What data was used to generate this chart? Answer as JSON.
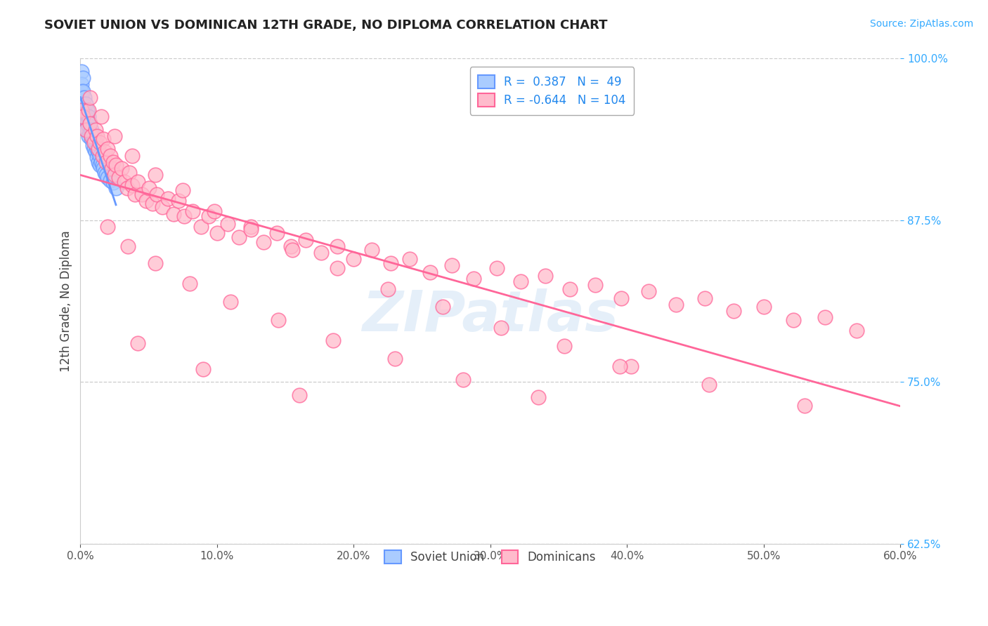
{
  "title": "SOVIET UNION VS DOMINICAN 12TH GRADE, NO DIPLOMA CORRELATION CHART",
  "source_text": "Source: ZipAtlas.com",
  "ylabel": "12th Grade, No Diploma",
  "xmin": 0.0,
  "xmax": 0.6,
  "ymin": 0.625,
  "ymax": 1.0,
  "xticks": [
    0.0,
    0.1,
    0.2,
    0.3,
    0.4,
    0.5,
    0.6
  ],
  "yticks": [
    0.625,
    0.75,
    0.875,
    1.0
  ],
  "legend_label1": "Soviet Union",
  "legend_label2": "Dominicans",
  "r1": 0.387,
  "n1": 49,
  "r2": -0.644,
  "n2": 104,
  "watermark": "ZIPatlas",
  "blue_color": "#6699FF",
  "blue_fill": "#AACCFF",
  "pink_color": "#FF6699",
  "pink_fill": "#FFBBCC",
  "soviet_x": [
    0.001,
    0.001,
    0.001,
    0.001,
    0.001,
    0.002,
    0.002,
    0.002,
    0.002,
    0.002,
    0.003,
    0.003,
    0.003,
    0.003,
    0.004,
    0.004,
    0.004,
    0.004,
    0.005,
    0.005,
    0.005,
    0.006,
    0.006,
    0.006,
    0.007,
    0.007,
    0.008,
    0.008,
    0.009,
    0.009,
    0.01,
    0.01,
    0.011,
    0.011,
    0.012,
    0.012,
    0.013,
    0.013,
    0.014,
    0.014,
    0.015,
    0.016,
    0.017,
    0.018,
    0.019,
    0.02,
    0.022,
    0.024,
    0.026
  ],
  "soviet_y": [
    0.99,
    0.98,
    0.975,
    0.97,
    0.965,
    0.985,
    0.975,
    0.965,
    0.96,
    0.955,
    0.97,
    0.96,
    0.955,
    0.95,
    0.965,
    0.955,
    0.95,
    0.945,
    0.96,
    0.95,
    0.945,
    0.955,
    0.948,
    0.94,
    0.95,
    0.943,
    0.945,
    0.938,
    0.94,
    0.933,
    0.94,
    0.93,
    0.935,
    0.928,
    0.93,
    0.924,
    0.928,
    0.92,
    0.925,
    0.918,
    0.92,
    0.918,
    0.915,
    0.912,
    0.91,
    0.908,
    0.906,
    0.904,
    0.9
  ],
  "dominican_x": [
    0.001,
    0.002,
    0.004,
    0.006,
    0.007,
    0.008,
    0.01,
    0.011,
    0.012,
    0.013,
    0.014,
    0.016,
    0.017,
    0.018,
    0.019,
    0.02,
    0.022,
    0.023,
    0.024,
    0.025,
    0.026,
    0.028,
    0.03,
    0.032,
    0.034,
    0.036,
    0.038,
    0.04,
    0.042,
    0.045,
    0.048,
    0.05,
    0.053,
    0.056,
    0.06,
    0.064,
    0.068,
    0.072,
    0.076,
    0.082,
    0.088,
    0.094,
    0.1,
    0.108,
    0.116,
    0.125,
    0.134,
    0.144,
    0.154,
    0.165,
    0.176,
    0.188,
    0.2,
    0.213,
    0.227,
    0.241,
    0.256,
    0.272,
    0.288,
    0.305,
    0.322,
    0.34,
    0.358,
    0.377,
    0.396,
    0.416,
    0.436,
    0.457,
    0.478,
    0.5,
    0.522,
    0.545,
    0.568,
    0.007,
    0.015,
    0.025,
    0.038,
    0.055,
    0.075,
    0.098,
    0.125,
    0.155,
    0.188,
    0.225,
    0.265,
    0.308,
    0.354,
    0.403,
    0.02,
    0.035,
    0.055,
    0.08,
    0.11,
    0.145,
    0.185,
    0.23,
    0.28,
    0.335,
    0.395,
    0.46,
    0.53,
    0.042,
    0.09,
    0.16
  ],
  "dominican_y": [
    0.96,
    0.955,
    0.945,
    0.96,
    0.95,
    0.94,
    0.935,
    0.945,
    0.94,
    0.93,
    0.935,
    0.925,
    0.938,
    0.928,
    0.92,
    0.93,
    0.925,
    0.915,
    0.92,
    0.91,
    0.918,
    0.908,
    0.915,
    0.905,
    0.9,
    0.912,
    0.902,
    0.895,
    0.905,
    0.895,
    0.89,
    0.9,
    0.888,
    0.895,
    0.885,
    0.892,
    0.88,
    0.89,
    0.878,
    0.882,
    0.87,
    0.878,
    0.865,
    0.872,
    0.862,
    0.87,
    0.858,
    0.865,
    0.855,
    0.86,
    0.85,
    0.855,
    0.845,
    0.852,
    0.842,
    0.845,
    0.835,
    0.84,
    0.83,
    0.838,
    0.828,
    0.832,
    0.822,
    0.825,
    0.815,
    0.82,
    0.81,
    0.815,
    0.805,
    0.808,
    0.798,
    0.8,
    0.79,
    0.97,
    0.955,
    0.94,
    0.925,
    0.91,
    0.898,
    0.882,
    0.868,
    0.852,
    0.838,
    0.822,
    0.808,
    0.792,
    0.778,
    0.762,
    0.87,
    0.855,
    0.842,
    0.826,
    0.812,
    0.798,
    0.782,
    0.768,
    0.752,
    0.738,
    0.762,
    0.748,
    0.732,
    0.78,
    0.76,
    0.74
  ]
}
